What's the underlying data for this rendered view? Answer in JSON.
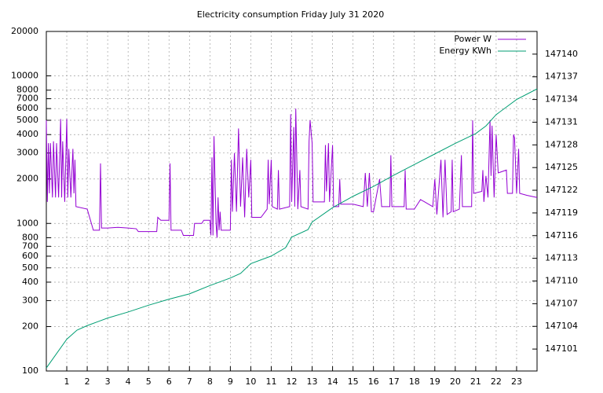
{
  "chart_data": {
    "type": "line",
    "title": "Electricity consumption Friday July 31 2020",
    "xlim": [
      0,
      24
    ],
    "xticks": [
      1,
      2,
      3,
      4,
      5,
      6,
      7,
      8,
      9,
      10,
      11,
      12,
      13,
      14,
      15,
      16,
      17,
      18,
      19,
      20,
      21,
      22,
      23
    ],
    "ylim": [
      100,
      20000
    ],
    "log_y": true,
    "yticks": [
      100,
      200,
      300,
      400,
      500,
      600,
      700,
      800,
      1000,
      2000,
      3000,
      4000,
      5000,
      6000,
      7000,
      8000,
      10000,
      20000
    ],
    "y2lim": [
      147098.1,
      147143
    ],
    "y2ticks": [
      147101,
      147104,
      147107,
      147110,
      147113,
      147116,
      147119,
      147122,
      147125,
      147128,
      147131,
      147134,
      147137,
      147140
    ],
    "grid": true,
    "legend": "top-right",
    "series": [
      {
        "name": "Power W",
        "color": "#9400d3",
        "x": [
          0,
          0.05,
          0.1,
          0.15,
          0.2,
          0.3,
          0.35,
          0.45,
          0.5,
          0.6,
          0.7,
          0.75,
          0.8,
          0.9,
          1.0,
          1.05,
          1.1,
          1.2,
          1.3,
          1.35,
          1.4,
          1.45,
          2.0,
          2.3,
          2.6,
          2.65,
          2.7,
          3.0,
          3.5,
          4.0,
          4.4,
          4.5,
          5.4,
          5.45,
          5.6,
          6.0,
          6.05,
          6.1,
          6.6,
          6.7,
          7.2,
          7.25,
          7.6,
          7.7,
          8.0,
          8.05,
          8.1,
          8.15,
          8.2,
          8.3,
          8.35,
          8.4,
          8.45,
          8.5,
          8.55,
          9.0,
          9.05,
          9.1,
          9.2,
          9.3,
          9.4,
          9.5,
          9.6,
          9.7,
          9.8,
          9.9,
          10.0,
          10.05,
          10.5,
          10.8,
          10.85,
          10.9,
          11.0,
          11.05,
          11.3,
          11.35,
          11.4,
          11.9,
          11.95,
          12.0,
          12.1,
          12.15,
          12.2,
          12.3,
          12.4,
          12.45,
          12.8,
          12.85,
          12.9,
          13.0,
          13.05,
          13.6,
          13.65,
          13.7,
          13.8,
          13.85,
          14.0,
          14.05,
          14.3,
          14.35,
          14.4,
          15.0,
          15.5,
          15.6,
          15.7,
          15.8,
          15.9,
          16.0,
          16.3,
          16.4,
          16.8,
          16.85,
          16.9,
          17.5,
          17.55,
          17.6,
          18.0,
          18.3,
          18.5,
          18.9,
          19.0,
          19.1,
          19.3,
          19.4,
          19.5,
          19.6,
          19.8,
          19.85,
          19.9,
          20.2,
          20.3,
          20.35,
          20.8,
          20.85,
          20.9,
          21.3,
          21.35,
          21.4,
          21.5,
          21.6,
          21.7,
          21.75,
          21.8,
          21.9,
          22.0,
          22.1,
          22.5,
          22.55,
          22.8,
          22.85,
          22.9,
          23.0,
          23.1,
          23.15,
          23.5,
          24
        ],
        "values": [
          5000,
          1400,
          3500,
          1600,
          3500,
          1500,
          3600,
          1500,
          3500,
          1500,
          5100,
          1500,
          3600,
          1400,
          5100,
          1500,
          3200,
          1500,
          3200,
          1600,
          2700,
          1300,
          1250,
          900,
          900,
          2550,
          930,
          930,
          940,
          930,
          920,
          880,
          880,
          1100,
          1050,
          1050,
          2550,
          900,
          900,
          830,
          830,
          1000,
          1000,
          1050,
          1050,
          830,
          2800,
          830,
          3900,
          1000,
          800,
          1500,
          900,
          1200,
          900,
          900,
          2700,
          1200,
          3000,
          1200,
          4400,
          1300,
          2800,
          1100,
          3200,
          1500,
          2700,
          1100,
          1100,
          1250,
          2700,
          1350,
          2700,
          1300,
          1250,
          2300,
          1250,
          1300,
          5500,
          1400,
          4500,
          1300,
          6000,
          1250,
          2300,
          1300,
          1250,
          3600,
          5000,
          3500,
          1400,
          1400,
          3400,
          1650,
          3500,
          1400,
          3400,
          1300,
          1300,
          2000,
          1350,
          1350,
          1300,
          2200,
          1300,
          2200,
          1200,
          1200,
          2000,
          1300,
          1300,
          2900,
          1300,
          1300,
          2300,
          1250,
          1250,
          1450,
          1400,
          1300,
          2000,
          1150,
          2700,
          1100,
          2700,
          1150,
          1200,
          2700,
          1200,
          1250,
          2900,
          1300,
          1300,
          5000,
          1600,
          1650,
          2300,
          1400,
          2100,
          1500,
          5000,
          2100,
          4600,
          1500,
          4000,
          2200,
          2300,
          1600,
          1600,
          4000,
          3800,
          1600,
          3200,
          1600,
          1550,
          1500
        ]
      },
      {
        "name": "Energy KWh",
        "color": "#009e73",
        "axis": "y2",
        "x": [
          0,
          1,
          1.5,
          2,
          3,
          4,
          5,
          6,
          7,
          8,
          9,
          9.5,
          10,
          11,
          11.7,
          12,
          12.8,
          13,
          14,
          15,
          16,
          17,
          18,
          19,
          20,
          21,
          21.5,
          22,
          23,
          24
        ],
        "values": [
          147098.5,
          147102.3,
          147103.5,
          147104.1,
          147105.1,
          147105.9,
          147106.8,
          147107.6,
          147108.3,
          147109.4,
          147110.4,
          147111.0,
          147112.3,
          147113.3,
          147114.4,
          147115.8,
          147116.8,
          147117.8,
          147119.7,
          147121.2,
          147122.5,
          147124.0,
          147125.4,
          147126.8,
          147128.2,
          147129.5,
          147130.5,
          147132.0,
          147134.0,
          147135.4
        ]
      }
    ]
  }
}
